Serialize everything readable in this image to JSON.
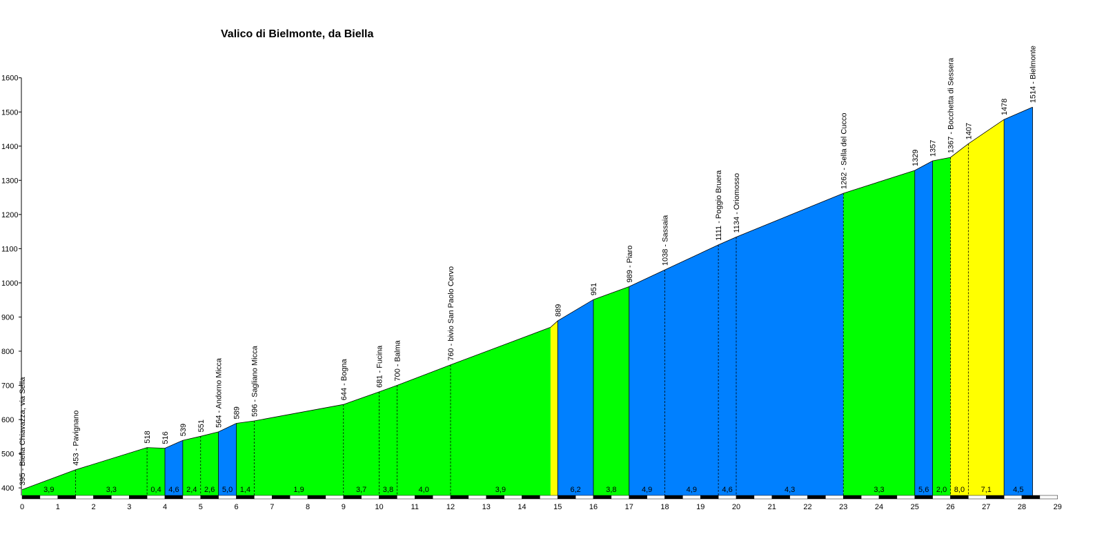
{
  "chart_data": {
    "type": "area",
    "title": "Valico di Bielmonte, da Biella",
    "xlabel": "",
    "ylabel": "",
    "xlim": [
      0,
      29
    ],
    "ylim": [
      380,
      1600
    ],
    "x_ticks": [
      0,
      1,
      2,
      3,
      4,
      5,
      6,
      7,
      8,
      9,
      10,
      11,
      12,
      13,
      14,
      15,
      16,
      17,
      18,
      19,
      20,
      21,
      22,
      23,
      24,
      25,
      26,
      27,
      28,
      29
    ],
    "y_ticks": [
      400,
      500,
      600,
      700,
      800,
      900,
      1000,
      1100,
      1200,
      1300,
      1400,
      1500,
      1600
    ],
    "grid": false,
    "colors": {
      "blue": "#0080ff",
      "green": "#00ff00",
      "yellow": "#ffff00"
    },
    "profile": [
      {
        "km": 0.0,
        "alt": 395
      },
      {
        "km": 1.5,
        "alt": 453
      },
      {
        "km": 3.5,
        "alt": 518
      },
      {
        "km": 4.0,
        "alt": 516
      },
      {
        "km": 4.5,
        "alt": 539
      },
      {
        "km": 5.0,
        "alt": 551
      },
      {
        "km": 5.5,
        "alt": 564
      },
      {
        "km": 6.0,
        "alt": 589
      },
      {
        "km": 6.5,
        "alt": 596
      },
      {
        "km": 9.0,
        "alt": 644
      },
      {
        "km": 10.0,
        "alt": 681
      },
      {
        "km": 10.5,
        "alt": 700
      },
      {
        "km": 12.0,
        "alt": 760
      },
      {
        "km": 14.8,
        "alt": 870
      },
      {
        "km": 15.0,
        "alt": 889
      },
      {
        "km": 16.0,
        "alt": 951
      },
      {
        "km": 17.0,
        "alt": 989
      },
      {
        "km": 18.0,
        "alt": 1038
      },
      {
        "km": 19.5,
        "alt": 1111
      },
      {
        "km": 20.0,
        "alt": 1134
      },
      {
        "km": 23.0,
        "alt": 1262
      },
      {
        "km": 25.0,
        "alt": 1329
      },
      {
        "km": 25.5,
        "alt": 1357
      },
      {
        "km": 26.0,
        "alt": 1367
      },
      {
        "km": 26.5,
        "alt": 1407
      },
      {
        "km": 27.5,
        "alt": 1478
      },
      {
        "km": 28.3,
        "alt": 1514
      }
    ],
    "segments": [
      {
        "from": 0.0,
        "to": 1.5,
        "color": "green",
        "gradient": "3,9"
      },
      {
        "from": 1.5,
        "to": 3.5,
        "color": "green",
        "gradient": "3,3"
      },
      {
        "from": 3.5,
        "to": 4.0,
        "color": "green",
        "gradient": "0,4"
      },
      {
        "from": 4.0,
        "to": 4.5,
        "color": "blue",
        "gradient": "4,6"
      },
      {
        "from": 4.5,
        "to": 5.0,
        "color": "green",
        "gradient": "2,4"
      },
      {
        "from": 5.0,
        "to": 5.5,
        "color": "green",
        "gradient": "2,6"
      },
      {
        "from": 5.5,
        "to": 6.0,
        "color": "blue",
        "gradient": "5,0"
      },
      {
        "from": 6.0,
        "to": 6.5,
        "color": "green",
        "gradient": "1,4"
      },
      {
        "from": 6.5,
        "to": 9.0,
        "color": "green",
        "gradient": "1,9"
      },
      {
        "from": 9.0,
        "to": 10.0,
        "color": "green",
        "gradient": "3,7"
      },
      {
        "from": 10.0,
        "to": 10.5,
        "color": "green",
        "gradient": "3,8"
      },
      {
        "from": 10.5,
        "to": 12.0,
        "color": "green",
        "gradient": "4,0"
      },
      {
        "from": 12.0,
        "to": 14.8,
        "color": "green",
        "gradient": "3,9"
      },
      {
        "from": 14.8,
        "to": 15.0,
        "color": "yellow",
        "gradient": ""
      },
      {
        "from": 15.0,
        "to": 16.0,
        "color": "blue",
        "gradient": "6,2"
      },
      {
        "from": 16.0,
        "to": 17.0,
        "color": "green",
        "gradient": "3,8"
      },
      {
        "from": 17.0,
        "to": 18.0,
        "color": "blue",
        "gradient": "4,9"
      },
      {
        "from": 18.0,
        "to": 19.5,
        "color": "blue",
        "gradient": "4,9"
      },
      {
        "from": 19.5,
        "to": 20.0,
        "color": "blue",
        "gradient": "4,6"
      },
      {
        "from": 20.0,
        "to": 23.0,
        "color": "blue",
        "gradient": "4,3"
      },
      {
        "from": 23.0,
        "to": 25.0,
        "color": "green",
        "gradient": "3,3"
      },
      {
        "from": 25.0,
        "to": 25.5,
        "color": "blue",
        "gradient": "5,6"
      },
      {
        "from": 25.5,
        "to": 26.0,
        "color": "green",
        "gradient": "2,0"
      },
      {
        "from": 26.0,
        "to": 26.5,
        "color": "yellow",
        "gradient": "8,0"
      },
      {
        "from": 26.5,
        "to": 27.5,
        "color": "yellow",
        "gradient": "7,1"
      },
      {
        "from": 27.5,
        "to": 28.3,
        "color": "blue",
        "gradient": "4,5"
      }
    ],
    "annotations": [
      {
        "km": 0.0,
        "text": "395 - Biella Chiavazza, via Sella",
        "dashed": false
      },
      {
        "km": 1.5,
        "text": "453 - Pavignano",
        "dashed": true
      },
      {
        "km": 3.5,
        "text": "518",
        "dashed": true
      },
      {
        "km": 4.0,
        "text": "516",
        "dashed": false
      },
      {
        "km": 4.5,
        "text": "539",
        "dashed": false
      },
      {
        "km": 5.0,
        "text": "551",
        "dashed": true
      },
      {
        "km": 5.5,
        "text": "564 - Andorno Micca",
        "dashed": false
      },
      {
        "km": 6.0,
        "text": "589",
        "dashed": false
      },
      {
        "km": 6.5,
        "text": "596 - Sagliano Micca",
        "dashed": true
      },
      {
        "km": 9.0,
        "text": "644 - Bogna",
        "dashed": true
      },
      {
        "km": 10.0,
        "text": "681 - Fucina",
        "dashed": true
      },
      {
        "km": 10.5,
        "text": "700 - Balma",
        "dashed": true
      },
      {
        "km": 12.0,
        "text": "760 - bivio San Paolo Cervo",
        "dashed": true
      },
      {
        "km": 15.0,
        "text": "889",
        "dashed": false
      },
      {
        "km": 16.0,
        "text": "951",
        "dashed": false
      },
      {
        "km": 17.0,
        "text": "989 - Piaro",
        "dashed": false
      },
      {
        "km": 18.0,
        "text": "1038 - Sassaia",
        "dashed": true
      },
      {
        "km": 19.5,
        "text": "1111 - Poggio Bruera",
        "dashed": true
      },
      {
        "km": 20.0,
        "text": "1134 - Oriomosso",
        "dashed": true
      },
      {
        "km": 23.0,
        "text": "1262 - Sella del Cucco",
        "dashed": true
      },
      {
        "km": 25.0,
        "text": "1329",
        "dashed": false
      },
      {
        "km": 25.5,
        "text": "1357",
        "dashed": false
      },
      {
        "km": 26.0,
        "text": "1367 - Bocchetta di Sessera",
        "dashed": true
      },
      {
        "km": 26.5,
        "text": "1407",
        "dashed": true
      },
      {
        "km": 27.5,
        "text": "1478",
        "dashed": false
      },
      {
        "km": 28.3,
        "text": "1514 - Bielmonte",
        "dashed": false
      }
    ]
  }
}
